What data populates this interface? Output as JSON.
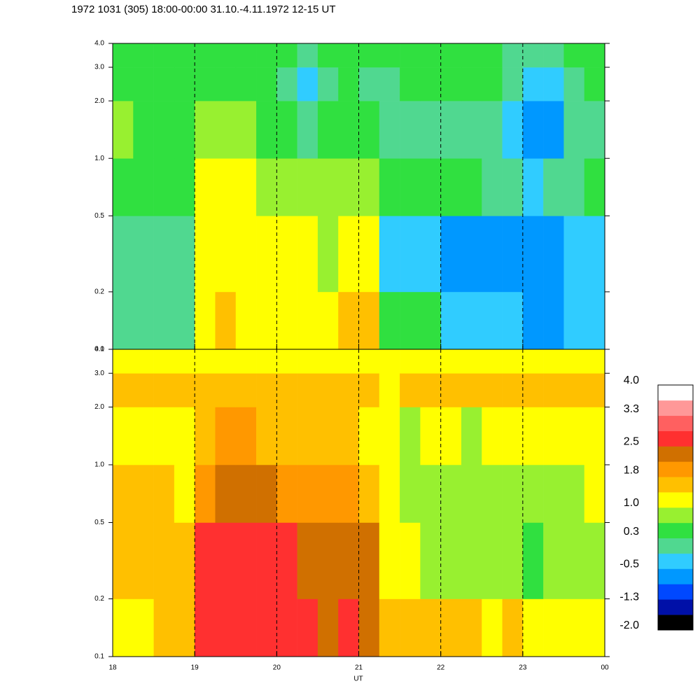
{
  "chart_data": {
    "type": "heatmap",
    "title": "1972 1031 (305) 18:00-00:00 31.10.-4.11.1972  12-15 UT",
    "xlabel": "UT",
    "log_y": true,
    "xlim": [
      18,
      24
    ],
    "ylim": [
      0.1,
      4
    ],
    "xticks": [
      18,
      19,
      20,
      21,
      22,
      23,
      {
        "value": 24,
        "label": "00"
      }
    ],
    "yticks": [
      0.1,
      0.2,
      0.5,
      {
        "value": 1,
        "label": "1.0"
      },
      {
        "value": 2,
        "label": "2.0"
      },
      {
        "value": 3,
        "label": "3.0"
      },
      {
        "value": 4,
        "label": "4.0"
      }
    ],
    "vlines": [
      19,
      20,
      21,
      22,
      23
    ],
    "x_bins": [
      18,
      18.25,
      18.5,
      18.75,
      19,
      19.25,
      19.5,
      19.75,
      20,
      20.25,
      20.5,
      20.75,
      21,
      21.25,
      21.5,
      21.75,
      22,
      22.25,
      22.5,
      22.75,
      23,
      23.25,
      23.5,
      23.75,
      24
    ],
    "y_bins": [
      0.1,
      0.2,
      0.5,
      1,
      2,
      3,
      4
    ],
    "panels": [
      {
        "z": [
          [
            -0.1,
            0.0,
            0.0,
            0.1,
            1.3,
            1.4,
            1.2,
            1.3,
            1.2,
            1.1,
            1.3,
            1.4,
            1.5,
            0.4,
            0.3,
            0.3,
            -0.3,
            -0.4,
            -0.2,
            -0.5,
            -0.6,
            -0.6,
            -0.5,
            -0.4
          ],
          [
            0.2,
            0.1,
            0.2,
            0.2,
            1.1,
            1.2,
            1.1,
            1.0,
            1.2,
            1.0,
            0.9,
            1.2,
            1.3,
            -0.3,
            -0.5,
            -0.4,
            -0.6,
            -0.7,
            -0.6,
            -0.8,
            -0.7,
            -0.6,
            -0.5,
            -0.4
          ],
          [
            0.5,
            0.4,
            0.5,
            0.6,
            1.0,
            1.1,
            1.0,
            0.9,
            0.9,
            0.8,
            0.8,
            0.9,
            0.7,
            0.4,
            0.3,
            0.4,
            0.4,
            0.3,
            0.2,
            0.1,
            -0.3,
            0.1,
            0.2,
            0.3
          ],
          [
            0.7,
            0.6,
            0.6,
            0.5,
            0.8,
            0.8,
            0.7,
            0.6,
            0.3,
            0.0,
            0.4,
            0.5,
            0.3,
            0.2,
            0.1,
            0.2,
            0.1,
            0.0,
            0.2,
            -0.4,
            -0.7,
            -0.6,
            0.1,
            0.2
          ],
          [
            0.4,
            0.4,
            0.5,
            0.4,
            0.4,
            0.5,
            0.3,
            0.3,
            0.1,
            -0.4,
            0.2,
            0.3,
            0.2,
            0.2,
            0.3,
            0.3,
            0.3,
            0.3,
            0.3,
            0.0,
            -0.4,
            -0.3,
            0.2,
            0.3
          ],
          [
            0.4,
            0.5,
            0.4,
            0.5,
            0.5,
            0.5,
            0.4,
            0.4,
            0.3,
            0.0,
            0.3,
            0.4,
            0.3,
            0.4,
            0.4,
            0.3,
            0.4,
            0.4,
            0.3,
            0.2,
            0.1,
            0.2,
            0.4,
            0.4
          ]
        ]
      },
      {
        "z": [
          [
            1.2,
            1.3,
            1.4,
            1.5,
            2.6,
            2.7,
            2.6,
            2.6,
            2.5,
            2.6,
            2.4,
            2.6,
            2.3,
            1.6,
            1.5,
            1.5,
            1.4,
            1.5,
            1.3,
            1.4,
            1.2,
            1.1,
            1.0,
            1.2
          ],
          [
            1.5,
            1.5,
            1.6,
            1.5,
            2.6,
            2.5,
            2.6,
            2.5,
            2.5,
            2.4,
            2.2,
            2.4,
            2.2,
            1.2,
            1.0,
            0.9,
            0.8,
            0.7,
            0.9,
            0.8,
            0.6,
            0.7,
            0.8,
            0.9
          ],
          [
            1.5,
            1.4,
            1.4,
            1.3,
            2.1,
            2.2,
            2.3,
            2.2,
            2.1,
            2.0,
            1.9,
            2.1,
            1.6,
            1.0,
            0.8,
            0.8,
            0.7,
            0.8,
            0.9,
            0.8,
            0.7,
            0.8,
            0.9,
            1.0
          ],
          [
            1.2,
            1.3,
            1.2,
            1.3,
            1.7,
            1.8,
            1.8,
            1.7,
            1.7,
            1.6,
            1.5,
            1.6,
            1.2,
            1.0,
            0.9,
            1.0,
            1.0,
            0.9,
            1.0,
            1.1,
            1.0,
            1.1,
            1.1,
            1.2
          ],
          [
            1.5,
            1.5,
            1.6,
            1.5,
            1.6,
            1.7,
            1.6,
            1.6,
            1.5,
            1.5,
            1.6,
            1.5,
            1.4,
            1.3,
            1.4,
            1.5,
            1.4,
            1.5,
            1.5,
            1.6,
            1.5,
            1.6,
            1.7,
            1.6
          ],
          [
            1.1,
            1.2,
            1.1,
            1.2,
            1.2,
            1.2,
            1.1,
            1.1,
            1.0,
            1.1,
            1.2,
            1.1,
            1.1,
            1.0,
            1.0,
            1.1,
            1.1,
            1.2,
            1.1,
            1.1,
            1.0,
            1.1,
            1.2,
            1.1
          ]
        ]
      }
    ],
    "colorbar": {
      "clim": [
        -2,
        4
      ],
      "colors": [
        "#000000",
        "#0010a8",
        "#0048ff",
        "#0098ff",
        "#30ccff",
        "#50d890",
        "#30e040",
        "#98f030",
        "#ffff00",
        "#ffc000",
        "#ff9800",
        "#d07000",
        "#ff3030",
        "#ff6060",
        "#ff9898",
        "#ffffff"
      ],
      "ticks": [
        {
          "value": 4,
          "label": "4.0"
        },
        {
          "value": 3.3,
          "label": "3.3"
        },
        {
          "value": 2.5,
          "label": "2.5"
        },
        {
          "value": 1.8,
          "label": "1.8"
        },
        {
          "value": 1,
          "label": "1.0"
        },
        {
          "value": 0.3,
          "label": "0.3"
        },
        {
          "value": -0.5,
          "label": "-0.5"
        },
        {
          "value": -1.3,
          "label": "-1.3"
        },
        {
          "value": -2,
          "label": "-2.0"
        }
      ]
    }
  }
}
